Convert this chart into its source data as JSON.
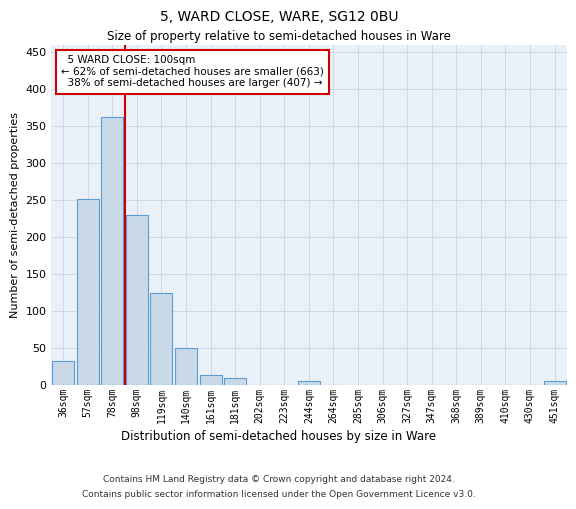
{
  "title": "5, WARD CLOSE, WARE, SG12 0BU",
  "subtitle": "Size of property relative to semi-detached houses in Ware",
  "xlabel": "Distribution of semi-detached houses by size in Ware",
  "ylabel": "Number of semi-detached properties",
  "footer_line1": "Contains HM Land Registry data © Crown copyright and database right 2024.",
  "footer_line2": "Contains public sector information licensed under the Open Government Licence v3.0.",
  "bar_color": "#c9d9e8",
  "bar_edge_color": "#5b9bd5",
  "grid_color": "#d0d8e8",
  "background_color": "#eaf0f8",
  "annotation_box_color": "#cc0000",
  "vline_color": "#cc0000",
  "bin_labels": [
    "36sqm",
    "57sqm",
    "78sqm",
    "98sqm",
    "119sqm",
    "140sqm",
    "161sqm",
    "181sqm",
    "202sqm",
    "223sqm",
    "244sqm",
    "264sqm",
    "285sqm",
    "306sqm",
    "327sqm",
    "347sqm",
    "368sqm",
    "389sqm",
    "410sqm",
    "430sqm",
    "451sqm"
  ],
  "bin_values": [
    33,
    252,
    363,
    230,
    124,
    50,
    14,
    10,
    0,
    0,
    5,
    0,
    0,
    0,
    0,
    0,
    0,
    0,
    0,
    0,
    5
  ],
  "property_label": "5 WARD CLOSE: 100sqm",
  "pct_smaller": 62,
  "count_smaller": 663,
  "pct_larger": 38,
  "count_larger": 407,
  "vline_x_index": 3,
  "ylim": [
    0,
    460
  ],
  "yticks": [
    0,
    50,
    100,
    150,
    200,
    250,
    300,
    350,
    400,
    450
  ]
}
